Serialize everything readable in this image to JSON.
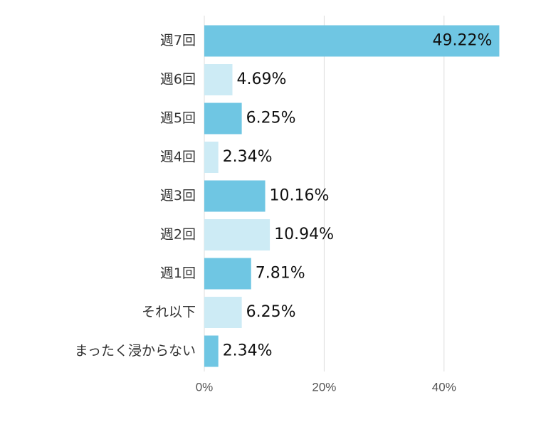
{
  "chart_data": {
    "type": "bar",
    "orientation": "horizontal",
    "categories": [
      "週7回",
      "週6回",
      "週5回",
      "週4回",
      "週3回",
      "週2回",
      "週1回",
      "それ以下",
      "まったく浸からない"
    ],
    "values": [
      49.22,
      4.69,
      6.25,
      2.34,
      10.16,
      10.94,
      7.81,
      6.25,
      2.34
    ],
    "value_labels": [
      "49.22%",
      "4.69%",
      "6.25%",
      "2.34%",
      "10.16%",
      "10.94%",
      "7.81%",
      "6.25%",
      "2.34%"
    ],
    "x_ticks": [
      0,
      20,
      40
    ],
    "x_tick_labels": [
      "0%",
      "20%",
      "40%"
    ],
    "xlim": [
      0,
      50
    ],
    "grid": true,
    "colors": {
      "dark": "#6fc6e3",
      "light": "#cdebf5"
    },
    "bar_color_pattern": [
      "dark",
      "light",
      "dark",
      "light",
      "dark",
      "light",
      "dark",
      "light",
      "dark"
    ],
    "title": "",
    "xlabel": "",
    "ylabel": ""
  }
}
